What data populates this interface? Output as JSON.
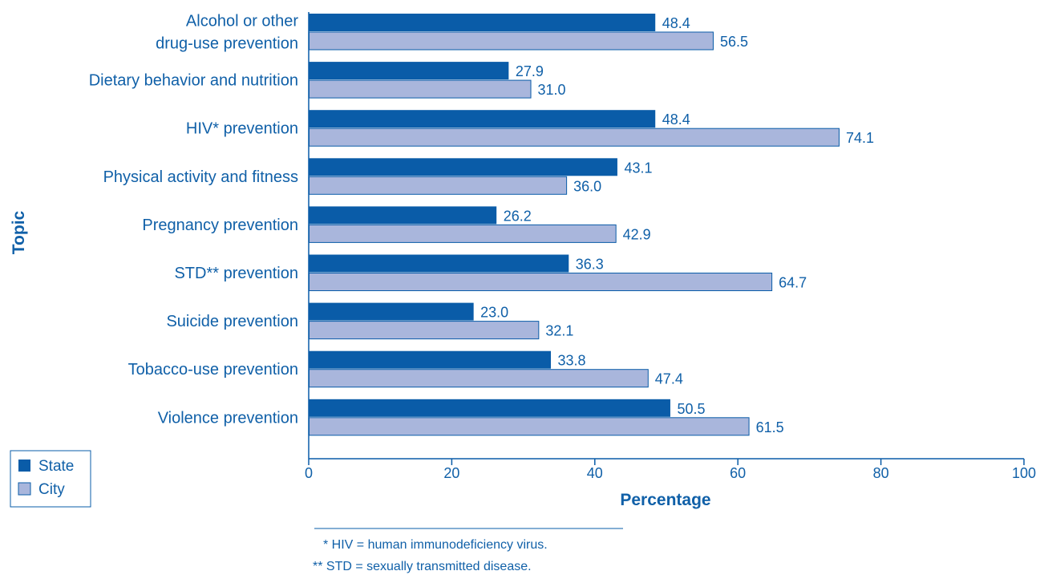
{
  "chart_data": {
    "type": "bar",
    "orientation": "horizontal",
    "categories": [
      [
        "Alcohol or other",
        "drug-use prevention"
      ],
      [
        "Dietary behavior and nutrition"
      ],
      [
        "HIV* prevention"
      ],
      [
        "Physical activity and fitness"
      ],
      [
        "Pregnancy prevention"
      ],
      [
        "STD** prevention"
      ],
      [
        "Suicide prevention"
      ],
      [
        "Tobacco-use prevention"
      ],
      [
        "Violence prevention"
      ]
    ],
    "series": [
      {
        "name": "State",
        "color": "#0a5ca8",
        "values": [
          48.4,
          27.9,
          48.4,
          43.1,
          26.2,
          36.3,
          23.0,
          33.8,
          50.5
        ],
        "labels": [
          "48.4",
          "27.9",
          "48.4",
          "43.1",
          "26.2",
          "36.3",
          "23.0",
          "33.8",
          "50.5"
        ]
      },
      {
        "name": "City",
        "color": "#a9b6dc",
        "values": [
          56.5,
          31.0,
          74.1,
          36.0,
          42.9,
          64.7,
          32.1,
          47.4,
          61.5
        ],
        "labels": [
          "56.5",
          "31.0",
          "74.1",
          "36.0",
          "42.9",
          "64.7",
          "32.1",
          "47.4",
          "61.5"
        ]
      }
    ],
    "xlabel": "Percentage",
    "ylabel": "Topic",
    "xlim": [
      0,
      100
    ],
    "xticks": [
      "0",
      "20",
      "40",
      "60",
      "80",
      "100"
    ],
    "grid": false,
    "legend_position": "bottom-left",
    "footnotes": [
      "*  HIV = human immunodeficiency virus.",
      "**  STD = sexually transmitted disease."
    ],
    "text_color": "#1060a8",
    "axis_color": "#0a5ca8"
  }
}
